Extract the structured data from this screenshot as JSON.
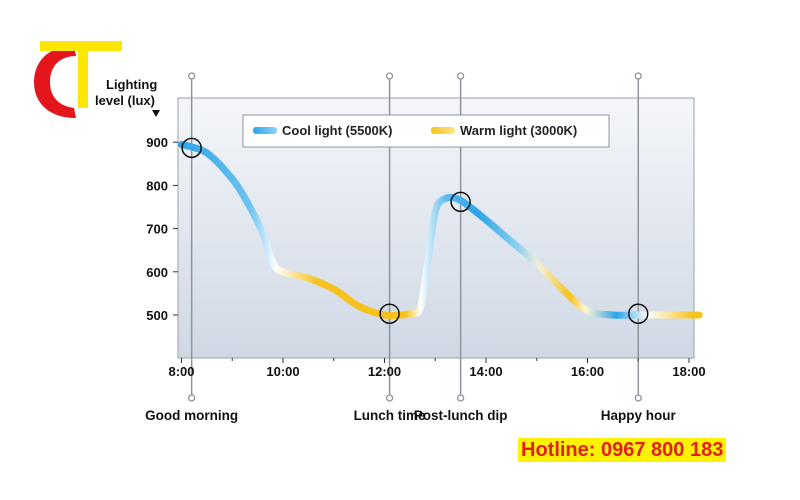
{
  "chart_data": {
    "type": "line",
    "ylabel": [
      "Lighting",
      "level (lux)"
    ],
    "x_ticks": [
      "8:00",
      "10:00",
      "12:00",
      "14:00",
      "16:00",
      "18:00"
    ],
    "xlim": [
      8,
      18.2
    ],
    "y_ticks": [
      "900",
      "800",
      "700",
      "600",
      "500"
    ],
    "ylim": [
      400,
      950
    ],
    "legend": {
      "position": "top-center",
      "entries": [
        {
          "label": "Cool light (5500K)",
          "color": "#2ba6e8"
        },
        {
          "label": "Warm light (3000K)",
          "color": "#f7c21b"
        }
      ]
    },
    "events": [
      {
        "label": "Good morning",
        "time": 8.2,
        "lux": 887
      },
      {
        "label": "Lunch time",
        "time": 12.1,
        "lux": 503
      },
      {
        "label": "Post-lunch dip",
        "time": 13.5,
        "lux": 762
      },
      {
        "label": "Happy hour",
        "time": 17.0,
        "lux": 503
      }
    ],
    "series": [
      {
        "x": [
          8.0,
          8.5,
          9.0,
          9.3,
          9.6,
          9.8,
          10.0,
          10.5,
          11.0,
          11.5,
          12.0,
          12.3,
          12.5,
          12.7,
          12.85,
          13.0,
          13.2,
          13.5,
          14.0,
          14.5,
          15.0,
          15.5,
          16.0,
          16.5,
          17.0,
          17.5,
          18.2
        ],
        "y": [
          895,
          875,
          815,
          760,
          690,
          620,
          600,
          585,
          560,
          520,
          500,
          500,
          503,
          515,
          620,
          740,
          770,
          765,
          720,
          670,
          620,
          560,
          510,
          500,
          500,
          500,
          500
        ]
      }
    ]
  },
  "branding": {
    "hotline": "Hotline: 0967 800 183",
    "logo_colors": {
      "yellow": "#ffe600",
      "red": "#e3161b"
    }
  }
}
